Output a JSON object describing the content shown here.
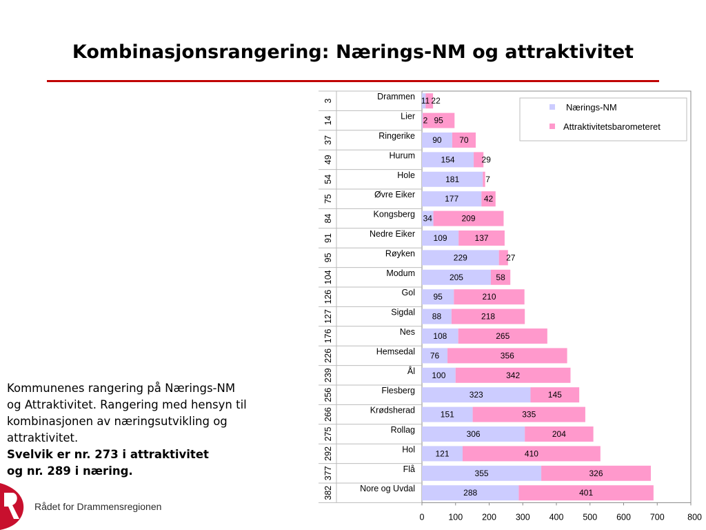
{
  "page": {
    "title": "Kombinasjonsrangering: Nærings-NM og attraktivitet",
    "description_lines": [
      "Kommunenes rangering på Nærings-NM",
      "og Attraktivitet. Rangering med hensyn til",
      "kombinasjonen av næringsutvikling og",
      "attraktivitet."
    ],
    "description_bold_lines": [
      "Svelvik er nr. 273 i attraktivitet",
      "og nr. 289 i næring."
    ],
    "logo_text": "Rådet for Drammensregionen",
    "colors": {
      "accent": "#c00000",
      "logo": "#c8102e"
    }
  },
  "chart_data": {
    "type": "bar",
    "orientation": "horizontal",
    "stacked": true,
    "categories": [
      "Drammen",
      "Lier",
      "Ringerike",
      "Hurum",
      "Hole",
      "Øvre Eiker",
      "Kongsberg",
      "Nedre Eiker",
      "Røyken",
      "Modum",
      "Gol",
      "Sigdal",
      "Nes",
      "Hemsedal",
      "Ål",
      "Flesberg",
      "Krødsherad",
      "Rollag",
      "Hol",
      "Flå",
      "Nore og Uvdal"
    ],
    "combined_rank": [
      "3",
      "14",
      "37",
      "49",
      "54",
      "75",
      "84",
      "91",
      "95",
      "104",
      "126",
      "127",
      "176",
      "226",
      "239",
      "256",
      "266",
      "275",
      "292",
      "377",
      "382"
    ],
    "series": [
      {
        "name": "Nærings-NM",
        "color": "#ccccff",
        "values": [
          11,
          2,
          90,
          154,
          181,
          177,
          34,
          109,
          229,
          205,
          95,
          88,
          108,
          76,
          100,
          323,
          151,
          306,
          121,
          355,
          288
        ]
      },
      {
        "name": "Attraktivitetsbarometeret",
        "color": "#ff99cc",
        "values": [
          22,
          95,
          70,
          29,
          7,
          42,
          209,
          137,
          27,
          58,
          210,
          218,
          265,
          356,
          342,
          145,
          335,
          204,
          410,
          326,
          401
        ]
      }
    ],
    "xlim": [
      0,
      800
    ],
    "xticks": [
      "0",
      "100",
      "200",
      "300",
      "400",
      "500",
      "600",
      "700",
      "800"
    ],
    "legend_position": "top-right",
    "grid": false
  }
}
